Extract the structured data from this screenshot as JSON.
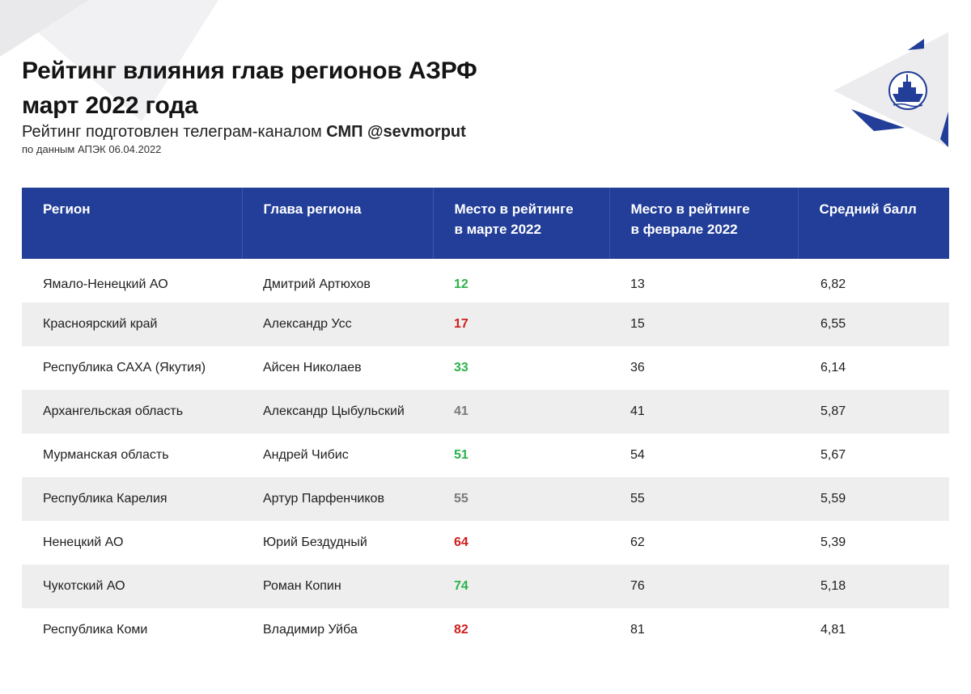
{
  "header": {
    "title_line1": "Рейтинг влияния глав регионов АЗРФ",
    "title_line2": "март 2022 года",
    "subtitle_prefix": "Рейтинг подготовлен телеграм-каналом",
    "subtitle_channel": "СМП @sevmorput",
    "source": "по данным АПЭК 06.04.2022"
  },
  "logo": {
    "icon": "icebreaker-ship-icon"
  },
  "colors": {
    "header_bg": "#223e98",
    "rank_up": "#2bb24c",
    "rank_down": "#d01d1d",
    "rank_same": "#7a7a7a",
    "stripe": "#eeeeee"
  },
  "table": {
    "columns": [
      {
        "line1": "Регион",
        "line2": ""
      },
      {
        "line1": "Глава региона",
        "line2": ""
      },
      {
        "line1": "Место в рейтинге",
        "line2": "в марте 2022"
      },
      {
        "line1": "Место в рейтинге",
        "line2": "в феврале 2022"
      },
      {
        "line1": "Средний балл",
        "line2": ""
      }
    ],
    "rows": [
      {
        "region": "Ямало-Ненецкий АО",
        "head": "Дмитрий Артюхов",
        "march": "12",
        "trend": "up",
        "february": "13",
        "score": "6,82"
      },
      {
        "region": "Красноярский край",
        "head": "Александр Усс",
        "march": "17",
        "trend": "down",
        "february": "15",
        "score": "6,55"
      },
      {
        "region": "Республика САХА (Якутия)",
        "head": "Айсен Николаев",
        "march": "33",
        "trend": "up",
        "february": "36",
        "score": "6,14"
      },
      {
        "region": "Архангельская область",
        "head": "Александр Цыбульский",
        "march": "41",
        "trend": "same",
        "february": "41",
        "score": "5,87"
      },
      {
        "region": "Мурманская область",
        "head": "Андрей Чибис",
        "march": "51",
        "trend": "up",
        "february": "54",
        "score": "5,67"
      },
      {
        "region": "Республика Карелия",
        "head": "Артур Парфенчиков",
        "march": "55",
        "trend": "same",
        "february": "55",
        "score": "5,59"
      },
      {
        "region": "Ненецкий АО",
        "head": "Юрий Бездудный",
        "march": "64",
        "trend": "down",
        "february": "62",
        "score": "5,39"
      },
      {
        "region": "Чукотский АО",
        "head": "Роман Копин",
        "march": "74",
        "trend": "up",
        "february": "76",
        "score": "5,18"
      },
      {
        "region": "Республика Коми",
        "head": "Владимир Уйба",
        "march": "82",
        "trend": "down",
        "february": "81",
        "score": "4,81"
      }
    ]
  }
}
